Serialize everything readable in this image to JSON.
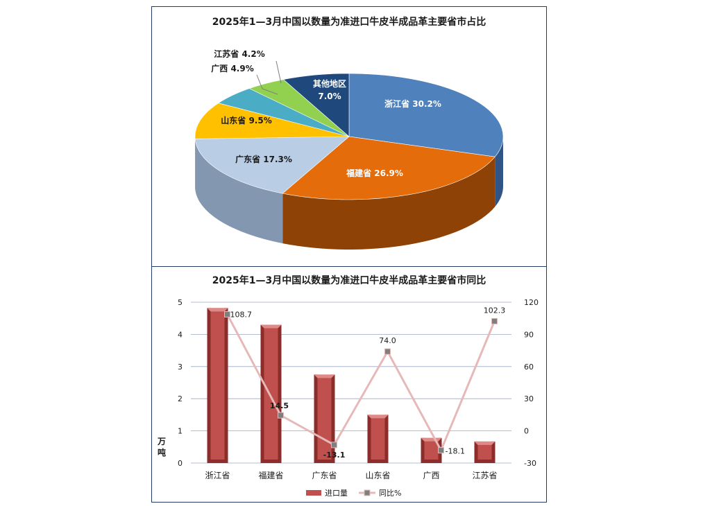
{
  "chart_data": [
    {
      "type": "pie",
      "title": "2025年1—3月中国以数量为准进口牛皮半成品革主要省市占比",
      "slices": [
        {
          "label": "浙江省",
          "value": 30.2,
          "display": "30.2%",
          "color": "#4f81bd",
          "side": "#2f5485"
        },
        {
          "label": "福建省",
          "value": 26.9,
          "display": "26.9%",
          "color": "#e46c0a",
          "side": "#8e4206"
        },
        {
          "label": "广东省",
          "value": 17.3,
          "display": "17.3%",
          "color": "#b9cde5",
          "side": "#8497b0"
        },
        {
          "label": "山东省",
          "value": 9.5,
          "display": "9.5%",
          "color": "#ffc000",
          "side": "#b38700"
        },
        {
          "label": "广西",
          "value": 4.9,
          "display": "4.9%",
          "color": "#4bacc6",
          "side": "#2f7a8e"
        },
        {
          "label": "江苏省",
          "value": 4.2,
          "display": "4.2%",
          "color": "#92d050",
          "side": "#5f8f30"
        },
        {
          "label": "其他地区",
          "value": 7.0,
          "display": "7.0%",
          "color": "#1f497d",
          "side": "#13304f"
        }
      ]
    },
    {
      "type": "bar",
      "title": "2025年1—3月中国以数量为准进口牛皮半成品革主要省市同比",
      "categories": [
        "浙江省",
        "福建省",
        "广东省",
        "山东省",
        "广西",
        "江苏省"
      ],
      "series": [
        {
          "name": "进口量",
          "type": "bar",
          "axis": "left",
          "values": [
            4.82,
            4.3,
            2.75,
            1.5,
            0.78,
            0.67
          ],
          "color": "#c0504d"
        },
        {
          "name": "同比%",
          "type": "line",
          "axis": "right",
          "values": [
            108.7,
            14.5,
            -13.1,
            74.0,
            -18.1,
            102.3
          ],
          "labels": [
            "108.7",
            "14.5",
            "-13.1",
            "74.0",
            "-18.1",
            "102.3"
          ],
          "color": "#e6b9b8"
        }
      ],
      "ylabel": "万\n吨",
      "ylabel_chars": [
        "万",
        "吨"
      ],
      "ylim": [
        0,
        5
      ],
      "yticks": [
        0,
        1,
        2,
        3,
        4,
        5
      ],
      "y2lim": [
        -30,
        120
      ],
      "y2ticks": [
        -30,
        0,
        30,
        60,
        90,
        120
      ],
      "legend": "bottom",
      "grid": true
    }
  ]
}
